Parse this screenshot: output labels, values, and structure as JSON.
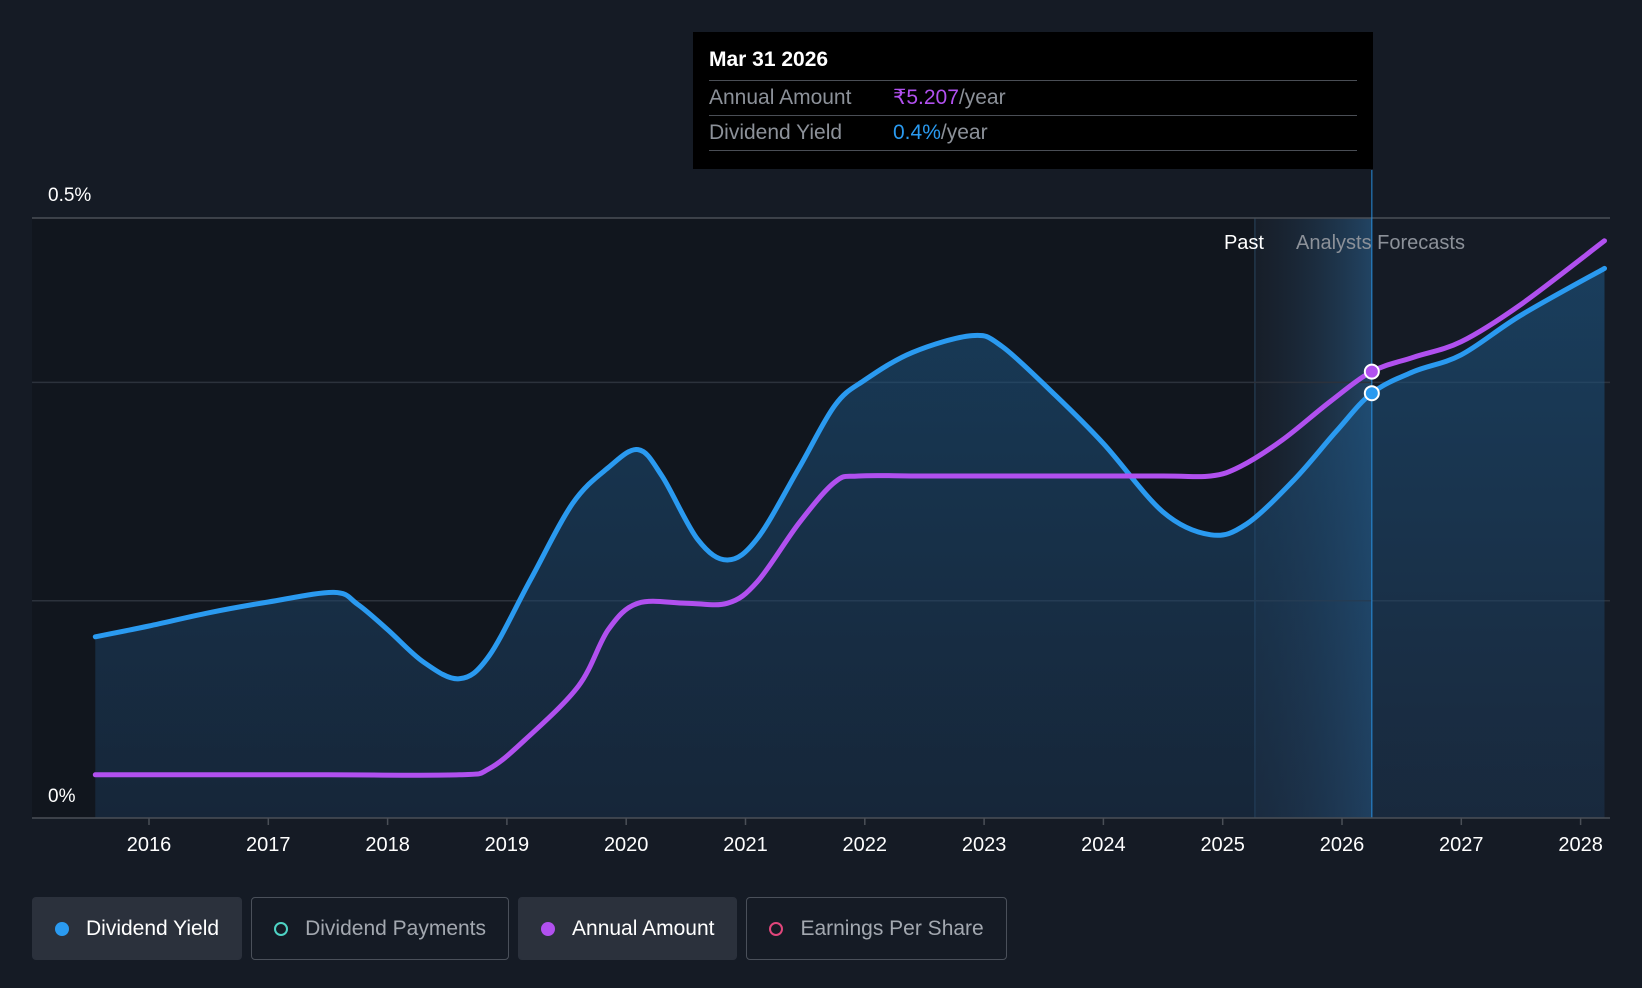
{
  "chart_data": {
    "type": "line",
    "x_ticks": [
      "2016",
      "2017",
      "2018",
      "2019",
      "2020",
      "2021",
      "2022",
      "2023",
      "2024",
      "2025",
      "2026",
      "2027",
      "2028"
    ],
    "y_ticks": [
      "0.5%",
      "0%"
    ],
    "ylim": [
      0,
      0.5
    ],
    "grid": true,
    "region_labels": {
      "past": "Past",
      "forecast": "Analysts Forecasts"
    },
    "series": [
      {
        "name": "Dividend Yield",
        "color": "#2a9af0",
        "area": true,
        "points": [
          [
            2015.55,
            0.151
          ],
          [
            2016.0,
            0.16
          ],
          [
            2016.5,
            0.171
          ],
          [
            2017.0,
            0.18
          ],
          [
            2017.55,
            0.188
          ],
          [
            2017.75,
            0.178
          ],
          [
            2018.0,
            0.157
          ],
          [
            2018.3,
            0.13
          ],
          [
            2018.6,
            0.116
          ],
          [
            2018.85,
            0.135
          ],
          [
            2019.2,
            0.199
          ],
          [
            2019.55,
            0.262
          ],
          [
            2019.85,
            0.292
          ],
          [
            2020.1,
            0.307
          ],
          [
            2020.3,
            0.285
          ],
          [
            2020.6,
            0.232
          ],
          [
            2020.85,
            0.215
          ],
          [
            2021.1,
            0.233
          ],
          [
            2021.45,
            0.292
          ],
          [
            2021.75,
            0.344
          ],
          [
            2022.0,
            0.365
          ],
          [
            2022.4,
            0.388
          ],
          [
            2022.9,
            0.402
          ],
          [
            2023.15,
            0.393
          ],
          [
            2023.6,
            0.352
          ],
          [
            2024.0,
            0.312
          ],
          [
            2024.5,
            0.255
          ],
          [
            2024.9,
            0.236
          ],
          [
            2025.2,
            0.245
          ],
          [
            2025.6,
            0.282
          ],
          [
            2025.95,
            0.322
          ],
          [
            2026.25,
            0.354
          ],
          [
            2026.6,
            0.372
          ],
          [
            2027.0,
            0.386
          ],
          [
            2027.5,
            0.419
          ],
          [
            2028.2,
            0.458
          ]
        ]
      },
      {
        "name": "Annual Amount",
        "color": "#b150ef",
        "area": false,
        "points": [
          [
            2015.55,
            0.036
          ],
          [
            2016.5,
            0.036
          ],
          [
            2017.5,
            0.036
          ],
          [
            2018.6,
            0.036
          ],
          [
            2018.85,
            0.041
          ],
          [
            2019.15,
            0.065
          ],
          [
            2019.6,
            0.11
          ],
          [
            2019.85,
            0.157
          ],
          [
            2020.1,
            0.179
          ],
          [
            2020.5,
            0.179
          ],
          [
            2020.85,
            0.179
          ],
          [
            2021.1,
            0.197
          ],
          [
            2021.45,
            0.246
          ],
          [
            2021.75,
            0.28
          ],
          [
            2021.95,
            0.285
          ],
          [
            2022.5,
            0.285
          ],
          [
            2023.5,
            0.285
          ],
          [
            2024.5,
            0.285
          ],
          [
            2024.9,
            0.285
          ],
          [
            2025.15,
            0.293
          ],
          [
            2025.5,
            0.315
          ],
          [
            2025.9,
            0.347
          ],
          [
            2026.25,
            0.372
          ],
          [
            2026.6,
            0.384
          ],
          [
            2027.0,
            0.397
          ],
          [
            2027.5,
            0.428
          ],
          [
            2028.2,
            0.481
          ]
        ]
      }
    ],
    "highlight": {
      "x": 2026.25,
      "yield_value": 0.354,
      "amount_value": 0.372
    }
  },
  "tooltip": {
    "date": "Mar 31 2026",
    "rows": [
      {
        "label": "Annual Amount",
        "value": "₹5.207",
        "suffix": "/year"
      },
      {
        "label": "Dividend Yield",
        "value": "0.4%",
        "suffix": "/year"
      }
    ]
  },
  "legend": [
    {
      "label": "Dividend Yield",
      "active": true,
      "color": "#2a9af0",
      "filled": true
    },
    {
      "label": "Dividend Payments",
      "active": false,
      "color": "#4ed3c4",
      "filled": false
    },
    {
      "label": "Annual Amount",
      "active": true,
      "color": "#b150ef",
      "filled": true
    },
    {
      "label": "Earnings Per Share",
      "active": false,
      "color": "#e0467b",
      "filled": false
    }
  ]
}
